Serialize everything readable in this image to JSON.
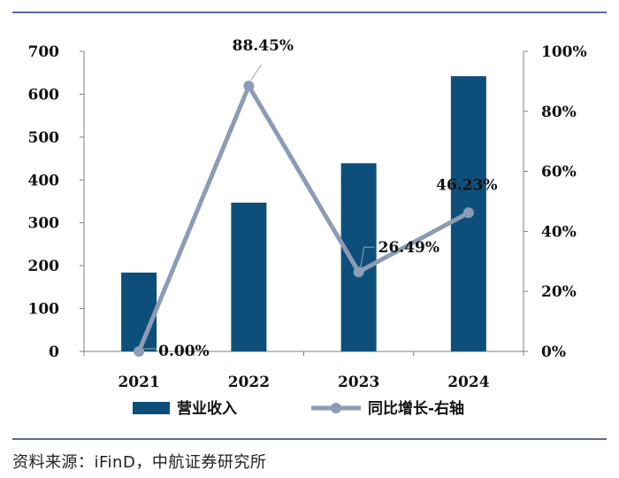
{
  "chart_data": {
    "type": "bar",
    "categories": [
      "2021",
      "2022",
      "2023",
      "2024"
    ],
    "series": [
      {
        "name": "营业收入",
        "type": "bar",
        "axis": "left",
        "values": [
          184,
          347,
          439,
          642
        ]
      },
      {
        "name": "同比增长-右轴",
        "type": "line",
        "axis": "right",
        "values": [
          0.0,
          88.45,
          26.49,
          46.23
        ]
      }
    ],
    "data_labels": [
      "0.00%",
      "88.45%",
      "26.49%",
      "46.23%"
    ],
    "y_left": {
      "lim": [
        0,
        700
      ],
      "ticks": [
        "0",
        "100",
        "200",
        "300",
        "400",
        "500",
        "600",
        "700"
      ]
    },
    "y_right": {
      "lim": [
        0,
        100
      ],
      "ticks": [
        "0%",
        "20%",
        "40%",
        "60%",
        "80%",
        "100%"
      ]
    },
    "grid": false,
    "legend": "bottom",
    "colors": {
      "bar": "#0d4f7a",
      "line": "#8c9cb6",
      "frame": "#1f3a6e"
    }
  },
  "source": "资料来源：iFinD，中航证券研究所"
}
